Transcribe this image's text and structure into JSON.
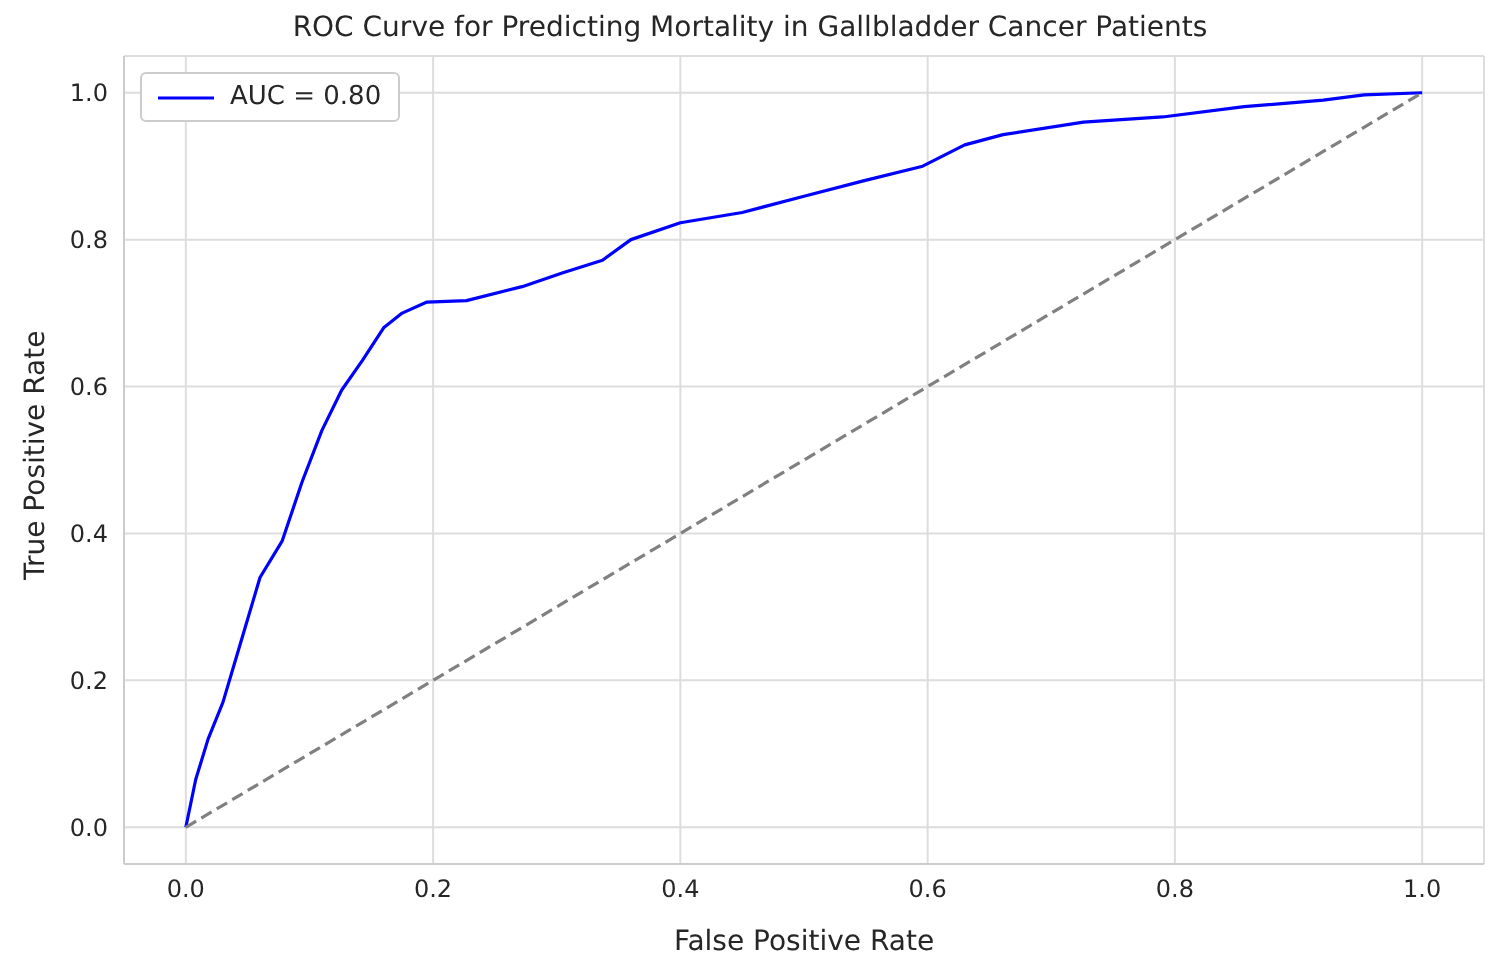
{
  "chart_data": {
    "type": "line",
    "title": "ROC Curve for Predicting Mortality in Gallbladder Cancer Patients",
    "xlabel": "False Positive Rate",
    "ylabel": "True Positive Rate",
    "xlim": [
      -0.05,
      1.05
    ],
    "ylim": [
      -0.05,
      1.05
    ],
    "xticks": [
      {
        "value": 0,
        "label": "0.0"
      },
      {
        "value": 0.2,
        "label": "0.2"
      },
      {
        "value": 0.4,
        "label": "0.4"
      },
      {
        "value": 0.6,
        "label": "0.6"
      },
      {
        "value": 0.8,
        "label": "0.8"
      },
      {
        "value": 1,
        "label": "1.0"
      }
    ],
    "yticks": [
      {
        "value": 0,
        "label": "0.0"
      },
      {
        "value": 0.2,
        "label": "0.2"
      },
      {
        "value": 0.4,
        "label": "0.4"
      },
      {
        "value": 0.6,
        "label": "0.6"
      },
      {
        "value": 0.8,
        "label": "0.8"
      },
      {
        "value": 1,
        "label": "1.0"
      }
    ],
    "grid": true,
    "legend": "top left",
    "series": [
      {
        "name": "AUC = 0.80",
        "color": "#0000ff",
        "line_style": "solid",
        "x": [
          0,
          0.008,
          0.018,
          0.03,
          0.045,
          0.06,
          0.078,
          0.094,
          0.11,
          0.126,
          0.143,
          0.16,
          0.175,
          0.195,
          0.227,
          0.272,
          0.305,
          0.337,
          0.36,
          0.4,
          0.45,
          0.5,
          0.548,
          0.596,
          0.63,
          0.661,
          0.726,
          0.79,
          0.856,
          0.92,
          0.953,
          1
        ],
        "values": [
          0,
          0.065,
          0.12,
          0.17,
          0.255,
          0.34,
          0.39,
          0.47,
          0.54,
          0.595,
          0.636,
          0.68,
          0.7,
          0.715,
          0.717,
          0.736,
          0.755,
          0.772,
          0.8,
          0.823,
          0.837,
          0.859,
          0.88,
          0.9,
          0.929,
          0.943,
          0.96,
          0.967,
          0.981,
          0.99,
          0.997,
          1
        ]
      },
      {
        "color": "#808080",
        "line_style": "dashed",
        "x": [
          0,
          1
        ],
        "values": [
          0,
          1
        ]
      }
    ]
  }
}
